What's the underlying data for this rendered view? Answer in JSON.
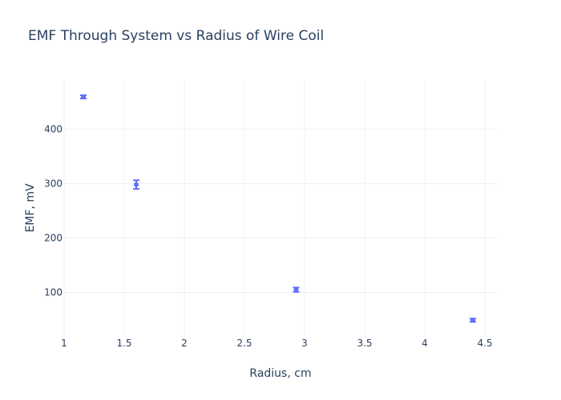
{
  "chart_data": {
    "type": "scatter",
    "title": "EMF Through System vs Radius of Wire Coil",
    "xlabel": "Radius, cm",
    "ylabel": "EMF, mV",
    "xlim": [
      1,
      4.6
    ],
    "ylim": [
      20,
      490
    ],
    "grid": true,
    "marker_color": "#636efa",
    "x_ticks": [
      1,
      1.5,
      2,
      2.5,
      3,
      3.5,
      4,
      4.5
    ],
    "x_tick_labels": [
      "1",
      "1.5",
      "2",
      "2.5",
      "3",
      "3.5",
      "4",
      "4.5"
    ],
    "y_ticks": [
      100,
      200,
      300,
      400
    ],
    "y_tick_labels": [
      "100",
      "200",
      "300",
      "400"
    ],
    "points": [
      {
        "x": 1.16,
        "y": 459,
        "err": 3
      },
      {
        "x": 1.6,
        "y": 298,
        "err": 8
      },
      {
        "x": 2.93,
        "y": 105,
        "err": 4
      },
      {
        "x": 4.4,
        "y": 49,
        "err": 3
      }
    ]
  }
}
